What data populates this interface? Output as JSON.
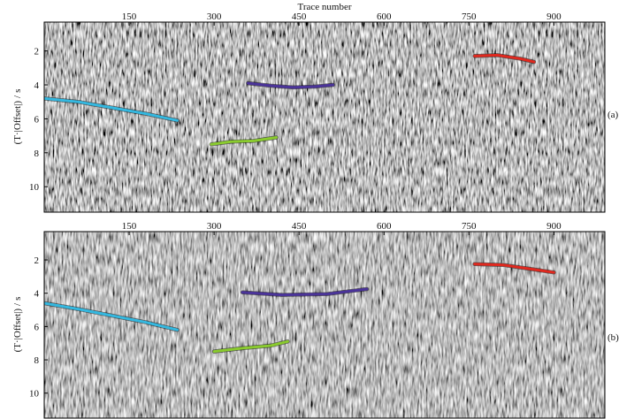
{
  "chart_data": {
    "type": "seismic-section",
    "xlabel": "Trace number",
    "ylabel_main": "(T·|Offset|)",
    "ylabel_unit": "s",
    "xlim": [
      0,
      990
    ],
    "ylim": [
      11.5,
      0.3
    ],
    "xticks": [
      150,
      300,
      450,
      600,
      750,
      900
    ],
    "yticks": [
      2,
      4,
      6,
      8,
      10
    ],
    "panels": [
      {
        "label": "(a)",
        "picks": [
          {
            "color": "#34b8e0",
            "points": [
              [
                0,
                4.8
              ],
              [
                60,
                5.0
              ],
              [
                120,
                5.35
              ],
              [
                180,
                5.7
              ],
              [
                235,
                6.1
              ]
            ]
          },
          {
            "color": "#4a3399",
            "points": [
              [
                360,
                3.9
              ],
              [
                400,
                4.05
              ],
              [
                440,
                4.15
              ],
              [
                480,
                4.1
              ],
              [
                510,
                4.0
              ]
            ]
          },
          {
            "color": "#8acb2e",
            "points": [
              [
                295,
                7.5
              ],
              [
                330,
                7.35
              ],
              [
                370,
                7.3
              ],
              [
                410,
                7.1
              ]
            ]
          },
          {
            "color": "#e0281e",
            "points": [
              [
                760,
                2.3
              ],
              [
                800,
                2.25
              ],
              [
                840,
                2.45
              ],
              [
                865,
                2.65
              ]
            ]
          }
        ]
      },
      {
        "label": "(b)",
        "picks": [
          {
            "color": "#34b8e0",
            "points": [
              [
                0,
                4.6
              ],
              [
                60,
                4.95
              ],
              [
                120,
                5.35
              ],
              [
                180,
                5.75
              ],
              [
                235,
                6.2
              ]
            ]
          },
          {
            "color": "#4a3399",
            "points": [
              [
                350,
                3.95
              ],
              [
                420,
                4.1
              ],
              [
                500,
                4.05
              ],
              [
                570,
                3.75
              ]
            ]
          },
          {
            "color": "#8acb2e",
            "points": [
              [
                300,
                7.5
              ],
              [
                350,
                7.3
              ],
              [
                400,
                7.15
              ],
              [
                430,
                6.9
              ]
            ]
          },
          {
            "color": "#e0281e",
            "points": [
              [
                760,
                2.25
              ],
              [
                810,
                2.3
              ],
              [
                860,
                2.55
              ],
              [
                900,
                2.75
              ]
            ]
          }
        ]
      }
    ]
  }
}
